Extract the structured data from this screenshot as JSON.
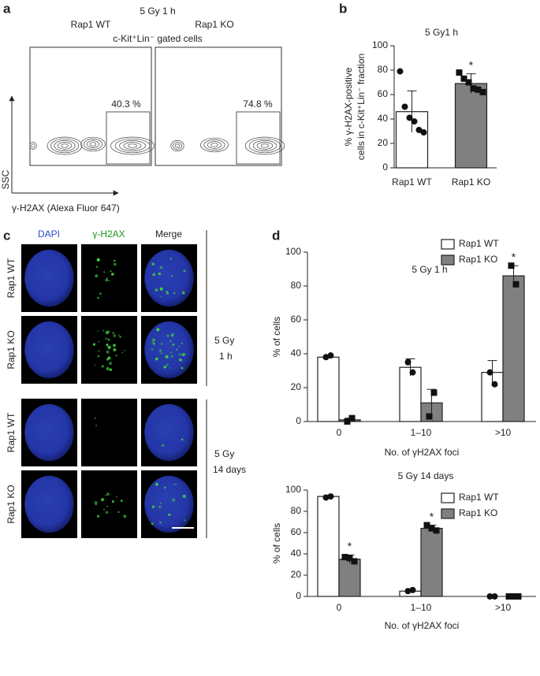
{
  "panel_labels": [
    "a",
    "b",
    "c",
    "d"
  ],
  "flow": {
    "title": "5 Gy 1 h",
    "groups": [
      "Rap1 WT",
      "Rap1 KO"
    ],
    "subtitle": "c-Kit⁺Lin⁻ gated cells",
    "gates": [
      "40.3 %",
      "74.8 %"
    ],
    "ylabel": "SSC",
    "xlabel": "γ-H2AX (Alexa Fluor 647)"
  },
  "microscopy": {
    "columns": [
      "DAPI",
      "γ-H2AX",
      "Merge"
    ],
    "rows": [
      "Rap1 WT",
      "Rap1 KO",
      "Rap1 WT",
      "Rap1 KO"
    ],
    "conditions": [
      [
        "5 Gy",
        "1 h"
      ],
      [
        "5 Gy",
        "14 days"
      ]
    ]
  },
  "chart_data": [
    {
      "type": "bar",
      "title": "5 Gy1 h",
      "ylabel": [
        "% γ-H2AX-positive",
        "cells in c-Kit⁺Lin⁻ fraction"
      ],
      "categories": [
        "Rap1 WT",
        "Rap1 KO"
      ],
      "values": [
        46,
        69
      ],
      "errors": [
        17,
        8
      ],
      "points": [
        [
          79,
          50,
          41,
          38,
          31,
          29
        ],
        [
          78,
          73,
          70,
          65,
          64,
          62
        ]
      ],
      "colors": [
        "#ffffff",
        "#808080"
      ],
      "markers": [
        "circle",
        "square"
      ],
      "annotations": [
        {
          "text": "*",
          "index": 1
        }
      ],
      "ylim": [
        0,
        100
      ],
      "yticks": [
        0,
        20,
        40,
        60,
        80,
        100
      ]
    },
    {
      "type": "bar",
      "title": "5 Gy 1 h",
      "xlabel": "No. of γH2AX foci",
      "ylabel": "% of cells",
      "categories": [
        "0",
        "1–10",
        ">10"
      ],
      "legend": "top-right",
      "series": [
        {
          "name": "Rap1 WT",
          "color": "#ffffff",
          "marker": "circle",
          "values": [
            38,
            32,
            29
          ],
          "errors": [
            0.5,
            5,
            7
          ],
          "points": [
            [
              38,
              39
            ],
            [
              35,
              29
            ],
            [
              29,
              22
            ]
          ]
        },
        {
          "name": "Rap1 KO",
          "color": "#808080",
          "marker": "square",
          "values": [
            1,
            11,
            86
          ],
          "errors": [
            1,
            8,
            6
          ],
          "points": [
            [
              0,
              2
            ],
            [
              3,
              17
            ],
            [
              92,
              81
            ]
          ],
          "annotations": [
            {
              "text": "*",
              "index": 2
            }
          ]
        }
      ],
      "ylim": [
        0,
        100
      ],
      "yticks": [
        0,
        20,
        40,
        60,
        80,
        100
      ]
    },
    {
      "type": "bar",
      "title": "5 Gy 14 days",
      "xlabel": "No. of γH2AX foci",
      "ylabel": "% of cells",
      "categories": [
        "0",
        "1–10",
        ">10"
      ],
      "legend": "top-right",
      "series": [
        {
          "name": "Rap1 WT",
          "color": "#ffffff",
          "marker": "circle",
          "values": [
            94,
            5,
            0
          ],
          "errors": [
            1,
            1.5,
            0
          ],
          "points": [
            [
              93,
              94
            ],
            [
              5,
              6
            ],
            [
              0,
              0
            ]
          ]
        },
        {
          "name": "Rap1 KO",
          "color": "#808080",
          "marker": "square",
          "values": [
            35,
            64,
            0
          ],
          "errors": [
            4,
            3,
            0
          ],
          "points": [
            [
              37,
              36,
              33
            ],
            [
              67,
              64,
              62
            ],
            [
              0,
              0,
              0
            ]
          ],
          "annotations": [
            {
              "text": "*",
              "index": 0
            },
            {
              "text": "*",
              "index": 1
            }
          ]
        }
      ],
      "ylim": [
        0,
        100
      ],
      "yticks": [
        0,
        20,
        40,
        60,
        80,
        100
      ]
    }
  ]
}
